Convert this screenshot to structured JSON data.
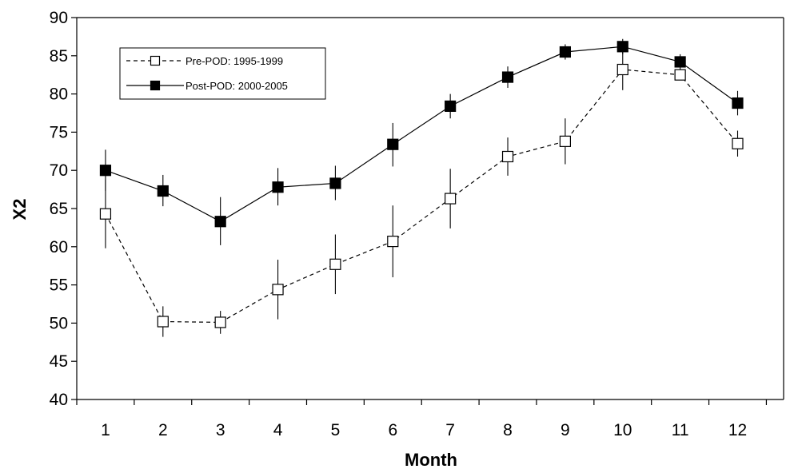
{
  "chart_data": {
    "type": "line",
    "title": "",
    "xlabel": "Month",
    "ylabel": "X2",
    "xlim": [
      0.5,
      12.8
    ],
    "ylim": [
      40,
      90
    ],
    "x": [
      1,
      2,
      3,
      4,
      5,
      6,
      7,
      8,
      9,
      10,
      11,
      12
    ],
    "x_ticks": [
      "1",
      "2",
      "3",
      "4",
      "5",
      "6",
      "7",
      "8",
      "9",
      "10",
      "11",
      "12"
    ],
    "y_ticks": [
      "40",
      "45",
      "50",
      "55",
      "60",
      "65",
      "70",
      "75",
      "80",
      "85",
      "90"
    ],
    "grid": false,
    "legend_position": "top-left",
    "series": [
      {
        "name": "Pre-POD: 1995-1999",
        "marker": "open-square",
        "line_style": "dashed",
        "color": "#000000",
        "values": [
          64.3,
          50.2,
          50.1,
          54.4,
          57.7,
          60.7,
          66.3,
          71.8,
          73.8,
          83.2,
          82.5,
          73.5
        ],
        "error_low": [
          59.8,
          48.2,
          48.6,
          50.5,
          53.8,
          56.0,
          62.4,
          69.3,
          70.8,
          80.5,
          81.8,
          71.8
        ],
        "error_high": [
          68.8,
          52.2,
          51.6,
          58.3,
          61.6,
          65.4,
          70.2,
          74.3,
          76.8,
          85.9,
          83.2,
          75.2
        ]
      },
      {
        "name": "Post-POD: 2000-2005",
        "marker": "filled-square",
        "line_style": "solid",
        "color": "#000000",
        "values": [
          70.0,
          67.3,
          63.3,
          67.8,
          68.3,
          73.4,
          78.4,
          82.2,
          85.5,
          86.2,
          84.2,
          78.8
        ],
        "error_low": [
          67.3,
          65.3,
          60.2,
          65.4,
          66.1,
          70.5,
          76.8,
          80.8,
          84.5,
          85.2,
          83.2,
          77.2
        ],
        "error_high": [
          72.7,
          69.4,
          66.5,
          70.3,
          70.6,
          76.2,
          80.0,
          83.6,
          86.5,
          87.2,
          85.2,
          80.4
        ]
      }
    ]
  }
}
